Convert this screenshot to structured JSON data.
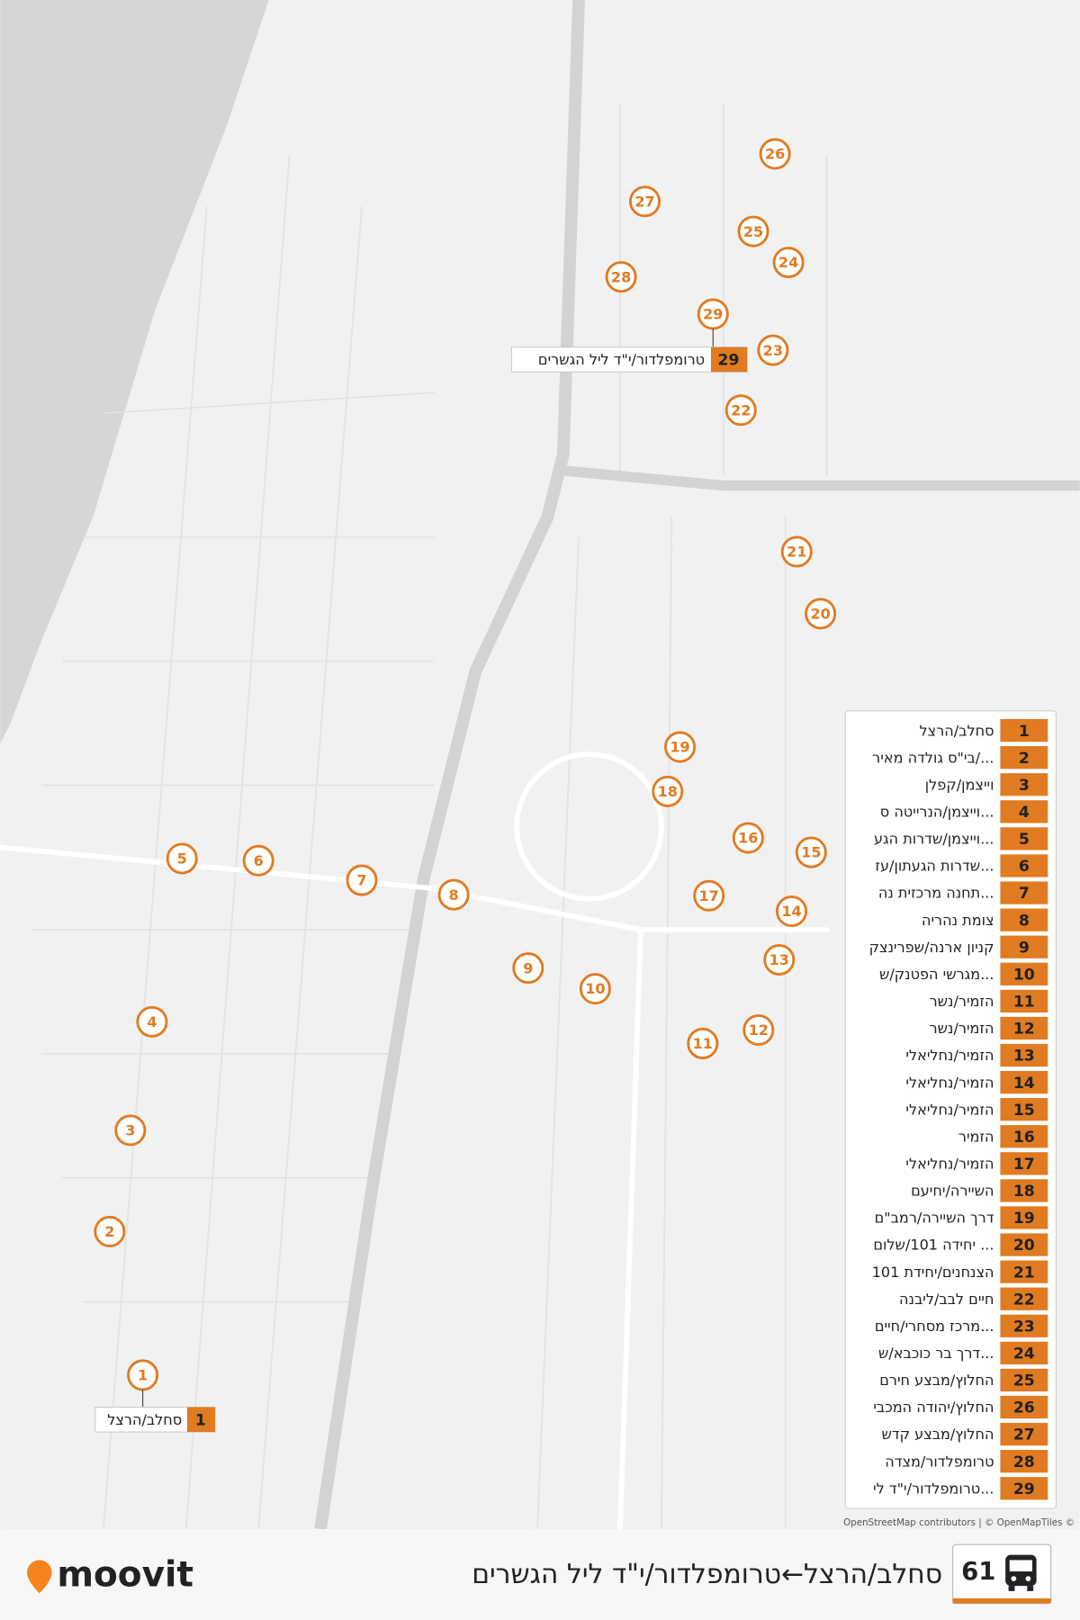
{
  "route": {
    "number": 61,
    "title": "סחלב/הרצל←טרומפלדור/י\"ד ליל הגשרים"
  },
  "brand": "moovit",
  "attribution": "OpenStreetMap contributors | © OpenMapTiles ©",
  "start_callout": "סחלב/הרצל",
  "end_callout": "טרומפלדור/י\"ד ליל הגשרים",
  "stops": [
    {
      "number": 1,
      "name": "סחלב/הרצל"
    },
    {
      "number": 2,
      "name": "בי\"ס גולדה מאיר/..."
    },
    {
      "number": 3,
      "name": "וייצמן/קפלן"
    },
    {
      "number": 4,
      "name": "וייצמן/הנרייטה ס..."
    },
    {
      "number": 5,
      "name": "וייצמן/שדרות הגע..."
    },
    {
      "number": 6,
      "name": "שדרות הגעתון/עז..."
    },
    {
      "number": 7,
      "name": "תחנה מרכזית נה..."
    },
    {
      "number": 8,
      "name": "צומת נהריה"
    },
    {
      "number": 9,
      "name": "קניון ארנה/שפרינצק"
    },
    {
      "number": 10,
      "name": "מגרשי הפטנק/ש..."
    },
    {
      "number": 11,
      "name": "הזמיר/נשר"
    },
    {
      "number": 12,
      "name": "הזמיר/נשר"
    },
    {
      "number": 13,
      "name": "הזמיר/נחליאלי"
    },
    {
      "number": 14,
      "name": "הזמיר/נחליאלי"
    },
    {
      "number": 15,
      "name": "הזמיר/נחליאלי"
    },
    {
      "number": 16,
      "name": "הזמיר"
    },
    {
      "number": 17,
      "name": "הזמיר/נחליאלי"
    },
    {
      "number": 18,
      "name": "השיירה/יחיעם"
    },
    {
      "number": 19,
      "name": "דרך השיירה/רמב\"ם"
    },
    {
      "number": 20,
      "name": "יחידה 101/שלום ..."
    },
    {
      "number": 21,
      "name": "הצנחנים/יחידת 101"
    },
    {
      "number": 22,
      "name": "חיים לבב/ליבנה"
    },
    {
      "number": 23,
      "name": "מרכז מסחרי/חיים..."
    },
    {
      "number": 24,
      "name": "דרך בר כוכבא/ש..."
    },
    {
      "number": 25,
      "name": "החלוץ/מבצע חירם"
    },
    {
      "number": 26,
      "name": "החלוץ/יהודה המכבי"
    },
    {
      "number": 27,
      "name": "החלוץ/מבצע קדש"
    },
    {
      "number": 28,
      "name": "טרומפלדור/מצדה"
    },
    {
      "number": 29,
      "name": "טרומפלדור/י\"ד לי..."
    }
  ]
}
